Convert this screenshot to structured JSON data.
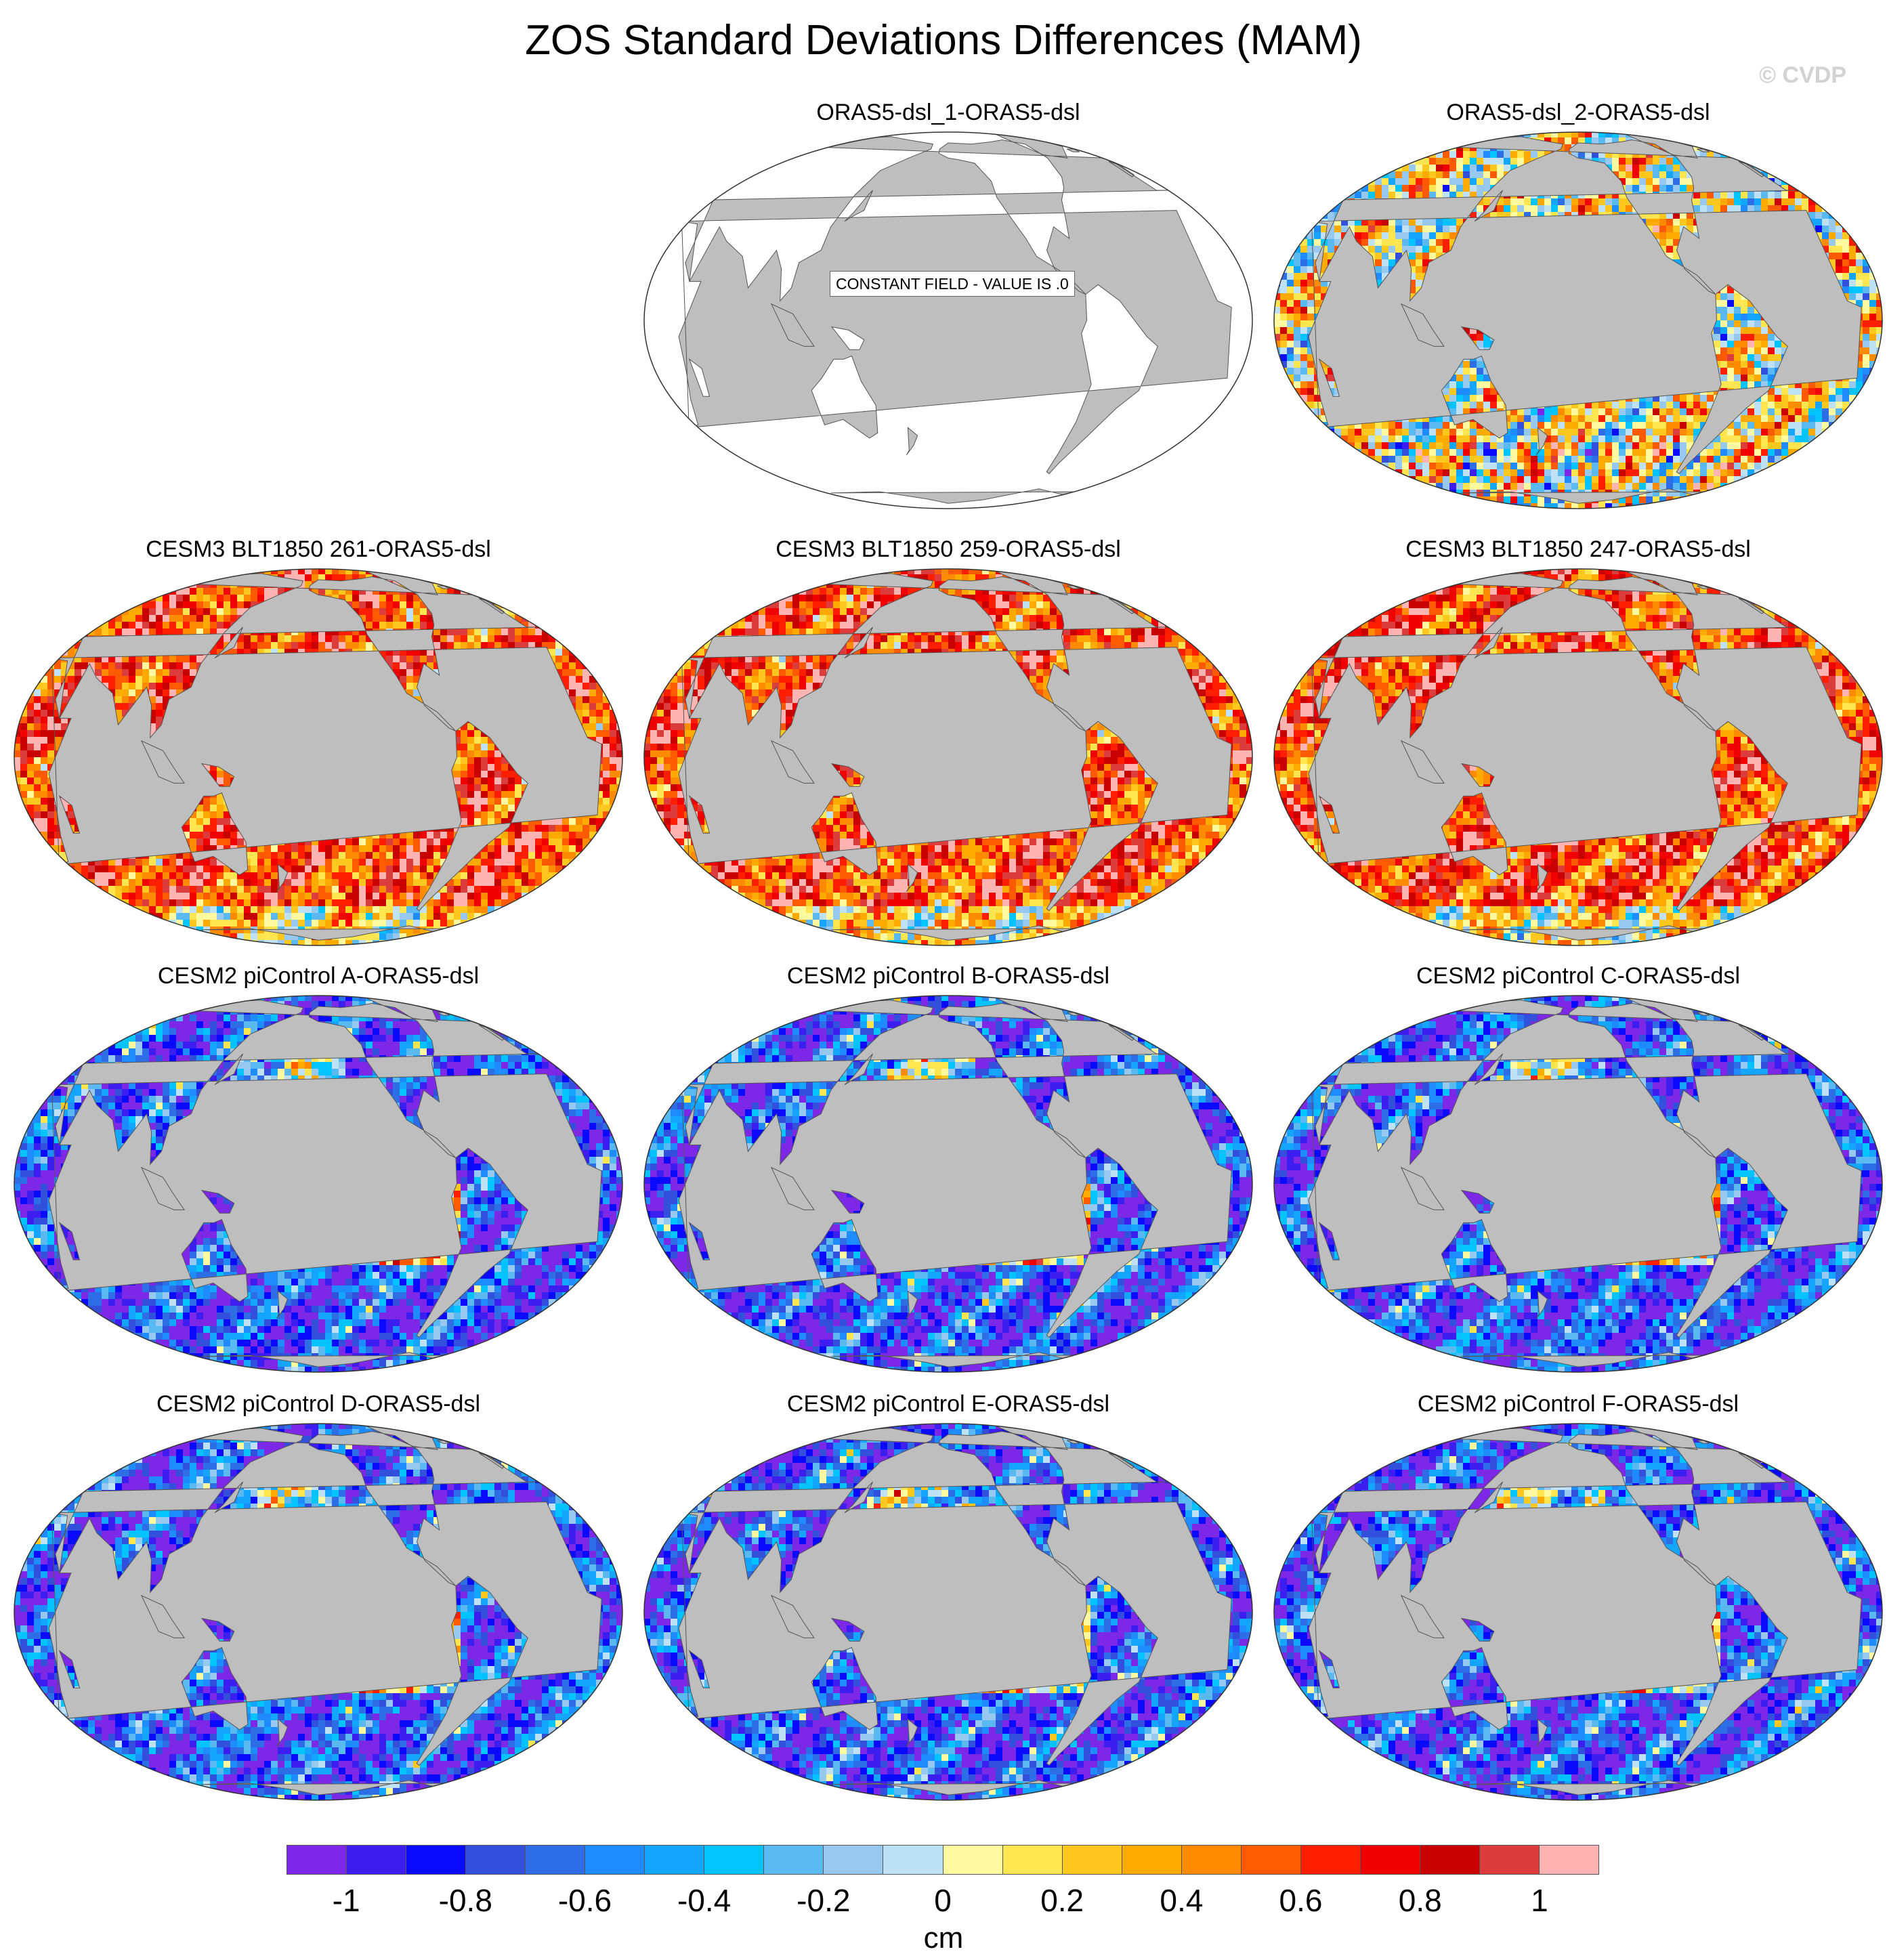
{
  "title": "ZOS Standard Deviations Differences (MAM)",
  "copyright": "© CVDP",
  "projection": "robinson-pacific-centered",
  "land_color": "#bebebe",
  "panels": [
    {
      "title": "ORAS5-dsl_1-ORAS5-dsl",
      "constant_field_label": "CONSTANT FIELD - VALUE IS .0",
      "pattern": "none"
    },
    {
      "title": "ORAS5-dsl_2-ORAS5-dsl",
      "pattern": "mixed"
    },
    {
      "title": "CESM3 BLT1850 261-ORAS5-dsl",
      "pattern": "positive"
    },
    {
      "title": "CESM3 BLT1850 259-ORAS5-dsl",
      "pattern": "positive"
    },
    {
      "title": "CESM3 BLT1850 247-ORAS5-dsl",
      "pattern": "positive"
    },
    {
      "title": "CESM2 piControl A-ORAS5-dsl",
      "pattern": "negative"
    },
    {
      "title": "CESM2 piControl B-ORAS5-dsl",
      "pattern": "negative"
    },
    {
      "title": "CESM2 piControl C-ORAS5-dsl",
      "pattern": "negative"
    },
    {
      "title": "CESM2 piControl D-ORAS5-dsl",
      "pattern": "negative"
    },
    {
      "title": "CESM2 piControl E-ORAS5-dsl",
      "pattern": "negative"
    },
    {
      "title": "CESM2 piControl F-ORAS5-dsl",
      "pattern": "negative"
    }
  ],
  "colorbar": {
    "units": "cm",
    "colors": [
      "#7d28e6",
      "#3c1ef0",
      "#0a0aff",
      "#3250dc",
      "#2d6ee6",
      "#1e8cff",
      "#14a5ff",
      "#00c3ff",
      "#5ab9f0",
      "#96c8f0",
      "#bee1f5",
      "#fffaa0",
      "#ffe650",
      "#ffc81e",
      "#ffaa00",
      "#ff8c00",
      "#ff5a00",
      "#ff1e00",
      "#f00000",
      "#c80000",
      "#dc3c3c",
      "#ffb4b4"
    ],
    "tick_labels": [
      "-1",
      "-0.8",
      "-0.6",
      "-0.4",
      "-0.2",
      "0",
      "0.2",
      "0.4",
      "0.6",
      "0.8",
      "1"
    ]
  }
}
